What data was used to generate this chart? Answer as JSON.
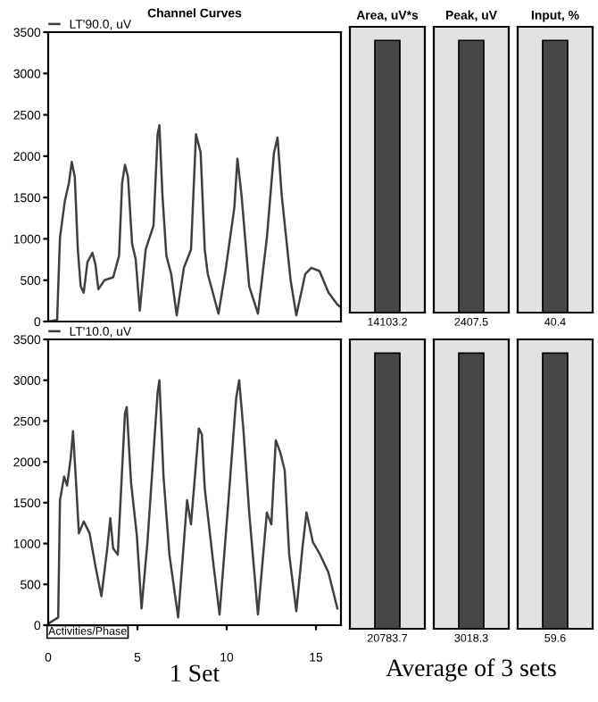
{
  "chart_data": [
    {
      "type": "line",
      "title": "Channel Curves",
      "legend": "top left",
      "tick_labels": "y",
      "xlim": [
        0,
        16.4
      ],
      "ylim": [
        0,
        3500
      ],
      "yticks": [
        0,
        500,
        1000,
        1500,
        2000,
        2500,
        3000,
        3500
      ],
      "series": [
        {
          "name": "LT'90.0, uV",
          "color": "#404040",
          "x": [
            0,
            0.5,
            0.66,
            0.93,
            1.16,
            1.32,
            1.49,
            1.66,
            1.82,
            1.99,
            2.2,
            2.48,
            2.65,
            2.81,
            3.15,
            3.64,
            3.97,
            4.14,
            4.3,
            4.47,
            4.7,
            4.9,
            5.13,
            5.46,
            5.9,
            6.13,
            6.23,
            6.4,
            6.62,
            6.89,
            7.2,
            7.6,
            8.0,
            8.28,
            8.54,
            8.77,
            8.94,
            9.54,
            9.93,
            10.43,
            10.6,
            10.83,
            11.26,
            11.75,
            12.25,
            12.65,
            12.85,
            13.08,
            13.58,
            13.9,
            14.4,
            14.74,
            15.2,
            15.7,
            16.2,
            16.4
          ],
          "values": [
            0,
            20,
            1015,
            1455,
            1675,
            1930,
            1750,
            870,
            425,
            350,
            720,
            830,
            685,
            390,
            500,
            535,
            795,
            1675,
            1895,
            1750,
            940,
            755,
            130,
            870,
            1160,
            2265,
            2375,
            1530,
            795,
            575,
            75,
            650,
            870,
            2265,
            2045,
            870,
            575,
            95,
            610,
            1380,
            1970,
            1530,
            425,
            95,
            1015,
            2045,
            2225,
            1530,
            500,
            75,
            575,
            650,
            610,
            350,
            205,
            170
          ]
        }
      ]
    },
    {
      "type": "bar",
      "title": "Area, uV*s",
      "categories": [
        null
      ],
      "values": [
        14103.2
      ],
      "color": "#474747",
      "data_labels": true,
      "tick_labels": false
    },
    {
      "type": "bar",
      "title": "Peak, uV",
      "categories": [
        null
      ],
      "values": [
        2407.5
      ],
      "color": "#474747",
      "data_labels": true,
      "tick_labels": false
    },
    {
      "type": "bar",
      "title": "Input, %",
      "categories": [
        null
      ],
      "values": [
        40.4
      ],
      "color": "#474747",
      "data_labels": true,
      "tick_labels": false
    },
    {
      "type": "line",
      "xlabel": "1 Set",
      "legend": "top left",
      "annotations": [
        "Activities/Phase"
      ],
      "xlim": [
        0,
        16.4
      ],
      "ylim": [
        0,
        3500
      ],
      "xticks": [
        0,
        5,
        10,
        15
      ],
      "yticks": [
        0,
        500,
        1000,
        1500,
        2000,
        2500,
        3000,
        3500
      ],
      "series": [
        {
          "name": "LT'10.0, uV",
          "color": "#404040",
          "x": [
            0,
            0.56,
            0.66,
            0.89,
            1.06,
            1.26,
            1.39,
            1.56,
            1.72,
            1.99,
            2.32,
            2.65,
            2.98,
            3.31,
            3.48,
            3.64,
            3.9,
            4.3,
            4.4,
            4.64,
            4.97,
            5.23,
            5.56,
            6.13,
            6.23,
            6.46,
            6.79,
            7.28,
            7.78,
            8.0,
            8.44,
            8.61,
            8.77,
            9.27,
            9.6,
            10.1,
            10.53,
            10.7,
            10.93,
            11.26,
            11.75,
            12.25,
            12.5,
            12.75,
            13.0,
            13.25,
            13.5,
            13.9,
            14.24,
            14.47,
            14.83,
            15.23,
            15.7,
            16.2
          ],
          "values": [
            20,
            95,
            1530,
            1820,
            1710,
            2045,
            2375,
            1750,
            1125,
            1270,
            1125,
            720,
            355,
            940,
            1310,
            940,
            865,
            2595,
            2670,
            1750,
            1090,
            205,
            1015,
            2850,
            3000,
            1820,
            865,
            95,
            1530,
            1235,
            2410,
            2335,
            1675,
            720,
            130,
            1530,
            2780,
            3000,
            2410,
            1380,
            130,
            1380,
            1235,
            2265,
            2115,
            1895,
            865,
            170,
            940,
            1380,
            1015,
            865,
            645,
            205
          ]
        }
      ]
    },
    {
      "type": "bar",
      "categories": [
        null
      ],
      "values": [
        20783.7
      ],
      "color": "#474747",
      "data_labels": true,
      "tick_labels": false
    },
    {
      "type": "bar",
      "xlabel": "Average of 3 sets",
      "categories": [
        null
      ],
      "values": [
        3018.3
      ],
      "color": "#474747",
      "data_labels": true,
      "tick_labels": false
    },
    {
      "type": "bar",
      "categories": [
        null
      ],
      "values": [
        59.6
      ],
      "color": "#474747",
      "data_labels": true,
      "tick_labels": false
    }
  ]
}
